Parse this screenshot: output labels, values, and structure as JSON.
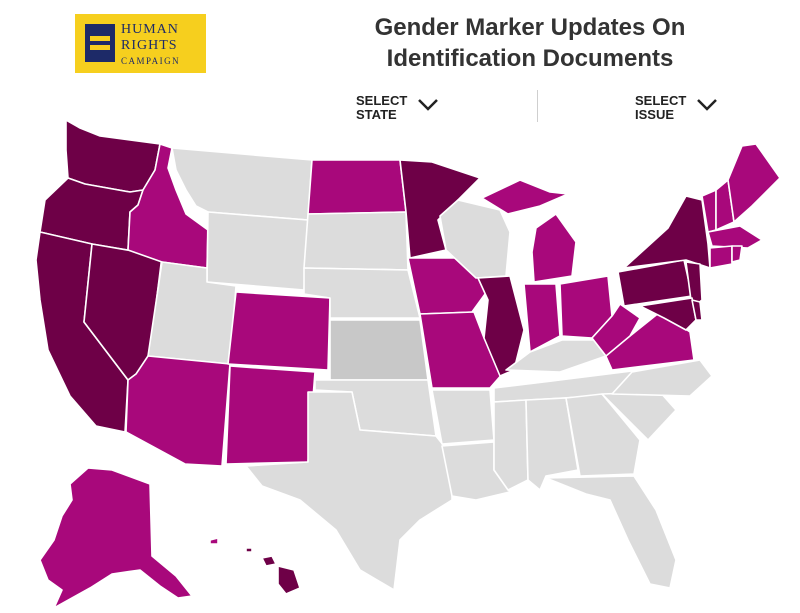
{
  "logo": {
    "line1": "HUMAN",
    "line2": "RIGHTS",
    "line3": "CAMPAIGN"
  },
  "title": {
    "line1": "Gender Marker Updates On",
    "line2": "Identification Documents"
  },
  "controls": {
    "state": {
      "line1": "SELECT",
      "line2": "STATE",
      "icon": "chevron-down-icon"
    },
    "issue": {
      "line1": "SELECT",
      "line2": "ISSUE",
      "icon": "chevron-down-icon"
    }
  },
  "colors": {
    "dark": "#6e0047",
    "medium": "#a8087b",
    "light_gray": "#dcdcdc",
    "mid_gray": "#c8c8c8",
    "logo_yellow": "#f6cf1e",
    "logo_navy": "#1d2a68"
  }
}
